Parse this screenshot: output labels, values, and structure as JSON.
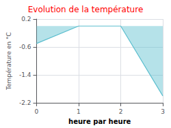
{
  "chart_data": {
    "type": "area",
    "title": "Evolution de la température",
    "ylabel": "Température en °C",
    "xlabel": "heure par heure",
    "x": [
      0,
      1,
      2,
      3
    ],
    "values": [
      -0.5,
      0.0,
      0.0,
      -2.0
    ],
    "color": "#5bbece",
    "xlim": [
      0,
      3
    ],
    "ylim": [
      -2.2,
      0.2
    ],
    "xticks": [
      0,
      1,
      2,
      3
    ],
    "yticks": [
      0.2,
      -0.6,
      -1.4,
      -2.2
    ],
    "grid": true
  }
}
